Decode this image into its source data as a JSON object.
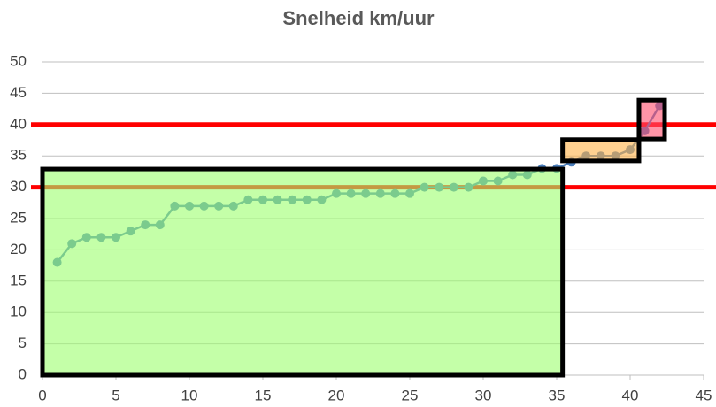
{
  "chart_data": {
    "type": "line",
    "title": "Snelheid km/uur",
    "x": [
      1,
      2,
      3,
      4,
      5,
      6,
      7,
      8,
      9,
      10,
      11,
      12,
      13,
      14,
      15,
      16,
      17,
      18,
      19,
      20,
      21,
      22,
      23,
      24,
      25,
      26,
      27,
      28,
      29,
      30,
      31,
      32,
      33,
      34,
      35,
      36,
      37,
      38,
      39,
      40,
      41,
      42
    ],
    "series": [
      {
        "name": "Snelheid",
        "color": "#4a7ebb",
        "values": [
          18,
          21,
          22,
          22,
          22,
          23,
          24,
          24,
          27,
          27,
          27,
          27,
          27,
          28,
          28,
          28,
          28,
          28,
          28,
          29,
          29,
          29,
          29,
          29,
          29,
          30,
          30,
          30,
          30,
          31,
          31,
          32,
          32,
          33,
          33,
          34,
          35,
          35,
          35,
          36,
          39,
          43
        ]
      }
    ],
    "xlim": [
      0,
      45
    ],
    "xticks": [
      0,
      5,
      10,
      15,
      20,
      25,
      30,
      35,
      40,
      45
    ],
    "ylim": [
      0,
      50
    ],
    "yticks": [
      0,
      5,
      10,
      15,
      20,
      25,
      30,
      35,
      40,
      45,
      50
    ],
    "grid": true,
    "reference_lines": [
      {
        "value": 30,
        "color": "#ff0000"
      },
      {
        "value": 40,
        "color": "#ff0000"
      }
    ],
    "regions": [
      {
        "x": [
          0,
          35.4
        ],
        "y": [
          0,
          32.9
        ],
        "color": "#9cff6e"
      },
      {
        "x": [
          35.4,
          40.6
        ],
        "y": [
          34.2,
          37.6
        ],
        "color": "#ffb347"
      },
      {
        "x": [
          40.6,
          42.35
        ],
        "y": [
          37.7,
          43.9
        ],
        "color": "#ff4d6d"
      }
    ]
  }
}
